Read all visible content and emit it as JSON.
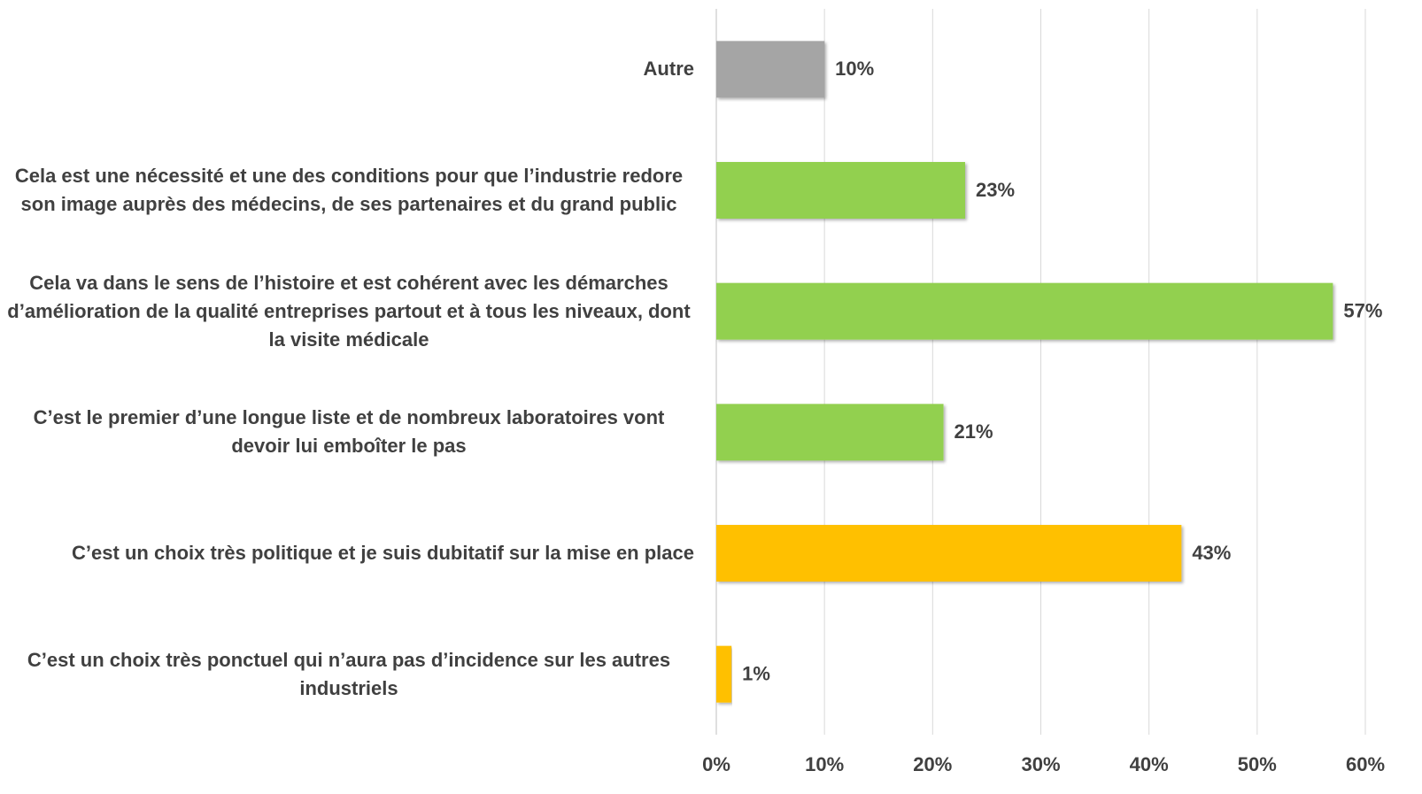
{
  "chart_data": {
    "type": "barh",
    "categories": [
      "Autre",
      "Cela est une nécessité et une des conditions pour que l’industrie redore son image auprès des médecins, de ses partenaires et du grand public",
      "Cela va dans le sens de l’histoire et est cohérent avec les démarches d’amélioration de la qualité entreprises partout et à tous les niveaux, dont la visite médicale",
      "C’est le premier d’une longue liste et de nombreux laboratoires vont devoir lui emboîter le pas",
      "C’est un choix très politique et je suis dubitatif sur la mise en place",
      "C’est un choix très ponctuel qui n’aura pas d’incidence sur les autres industriels"
    ],
    "values": [
      10,
      23,
      57,
      21,
      43,
      1.4
    ],
    "value_labels": [
      "10%",
      "23%",
      "57%",
      "21%",
      "43%",
      "1%"
    ],
    "colors": [
      "#a5a5a5",
      "#92d050",
      "#92d050",
      "#92d050",
      "#ffc000",
      "#ffc000"
    ],
    "xlim": [
      0,
      60
    ],
    "xticks": [
      {
        "value": 0,
        "label": "0%"
      },
      {
        "value": 10,
        "label": "10%"
      },
      {
        "value": 20,
        "label": "20%"
      },
      {
        "value": 30,
        "label": "30%"
      },
      {
        "value": 40,
        "label": "40%"
      },
      {
        "value": 50,
        "label": "50%"
      },
      {
        "value": 60,
        "label": "60%"
      }
    ],
    "grid": true
  }
}
